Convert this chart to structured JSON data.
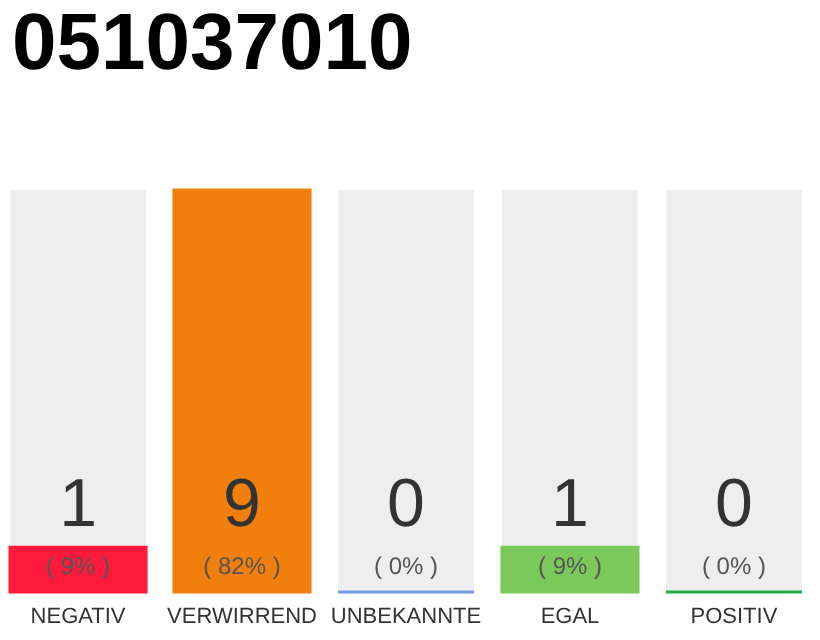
{
  "chart_data": {
    "type": "bar",
    "title": "051037010",
    "categories": [
      "NEGATIV",
      "VERWIRREND",
      "UNBEKANNTE",
      "EGAL",
      "POSITIV"
    ],
    "values": [
      1,
      9,
      0,
      1,
      0
    ],
    "colors": [
      "#ff1a3c",
      "#f07f0e",
      "#6f9be0",
      "#7ac95a",
      "#22aa44"
    ],
    "data_labels": true,
    "annotations": [
      "( 9% )",
      "( 82% )",
      "( 0% )",
      "( 9% )",
      "( 0% )"
    ]
  }
}
